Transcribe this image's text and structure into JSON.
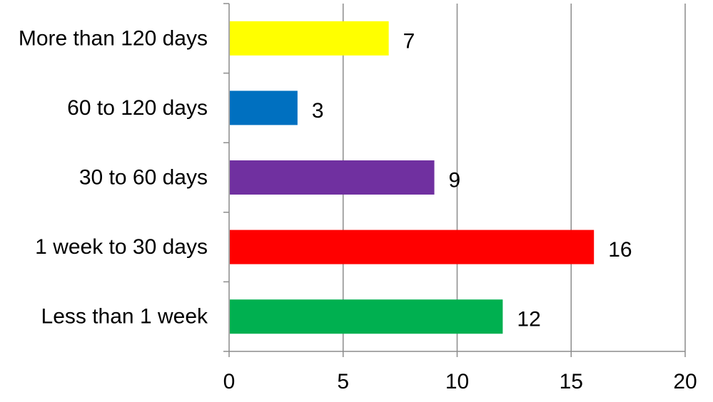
{
  "chart_data": {
    "type": "bar",
    "orientation": "horizontal",
    "categories": [
      "More than 120 days",
      "60 to 120 days",
      "30 to 60 days",
      "1 week to 30 days",
      "Less than 1 week"
    ],
    "values": [
      7,
      3,
      9,
      16,
      12
    ],
    "colors": [
      "#ffff00",
      "#0070c0",
      "#7030a0",
      "#ff0000",
      "#00b050"
    ],
    "xlim": [
      0,
      20
    ],
    "xticks": [
      0,
      5,
      10,
      15,
      20
    ],
    "grid": true,
    "data_labels": true,
    "title": "",
    "xlabel": "",
    "ylabel": ""
  }
}
